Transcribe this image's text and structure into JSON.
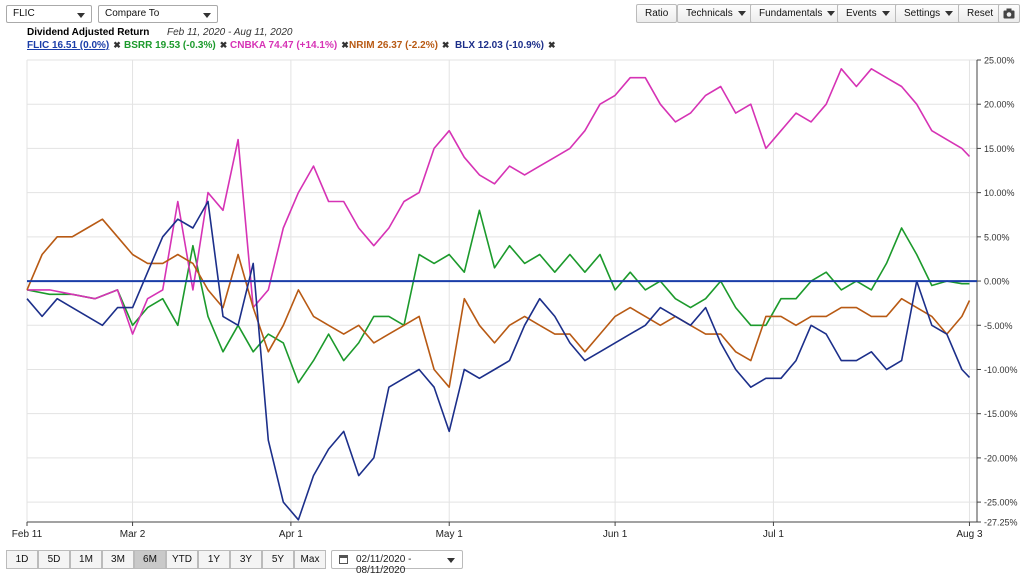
{
  "toolbar": {
    "symbol": "FLIC",
    "compare_placeholder": "Compare To",
    "buttons": {
      "ratio": "Ratio",
      "technicals": "Technicals",
      "fundamentals": "Fundamentals",
      "events": "Events",
      "settings": "Settings",
      "reset": "Reset"
    }
  },
  "chart_title": "Dividend Adjusted Return",
  "date_range_text": "Feb 11, 2020 - Aug 11, 2020",
  "legend": [
    {
      "label": "FLIC 16.51 (0.0%)",
      "color": "#1a3da8"
    },
    {
      "label": "BSRR 19.53 (-0.3%)",
      "color": "#1c9a2c"
    },
    {
      "label": "CNBKA 74.47 (+14.1%)",
      "color": "#d633b5"
    },
    {
      "label": "NRIM 26.37 (-2.2%)",
      "color": "#b85a14"
    },
    {
      "label": "BLX 12.03 (-10.9%)",
      "color": "#1c2f8a"
    }
  ],
  "chart_data": {
    "type": "line",
    "x_labels": [
      "Feb 11",
      "Mar 2",
      "Apr 1",
      "May 1",
      "Jun 1",
      "Jul 1",
      "Aug 3"
    ],
    "y_ticks": [
      "25.00%",
      "20.00%",
      "15.00%",
      "10.00%",
      "5.00%",
      "0.00%",
      "-5.00%",
      "-10.00%",
      "-15.00%",
      "-20.00%",
      "-25.00%",
      "-27.25%"
    ],
    "ylim": [
      -27.25,
      25
    ],
    "x_domain": [
      0,
      126
    ],
    "x_tick_index": [
      0,
      14,
      35,
      56,
      78,
      99,
      125
    ],
    "series": [
      {
        "name": "FLIC",
        "color": "#1a3da8",
        "points": [
          [
            0,
            0
          ],
          [
            126,
            0
          ]
        ]
      },
      {
        "name": "BSRR",
        "color": "#1c9a2c",
        "points": [
          [
            0,
            -1
          ],
          [
            3,
            -1.5
          ],
          [
            6,
            -1.5
          ],
          [
            9,
            -2
          ],
          [
            12,
            -1
          ],
          [
            14,
            -5
          ],
          [
            16,
            -3
          ],
          [
            18,
            -2
          ],
          [
            20,
            -5
          ],
          [
            22,
            4
          ],
          [
            24,
            -4
          ],
          [
            26,
            -8
          ],
          [
            28,
            -5
          ],
          [
            30,
            -8
          ],
          [
            32,
            -6
          ],
          [
            34,
            -7
          ],
          [
            36,
            -11.5
          ],
          [
            38,
            -9
          ],
          [
            40,
            -6
          ],
          [
            42,
            -9
          ],
          [
            44,
            -7
          ],
          [
            46,
            -4
          ],
          [
            48,
            -4
          ],
          [
            50,
            -5
          ],
          [
            52,
            3
          ],
          [
            54,
            2
          ],
          [
            56,
            3
          ],
          [
            58,
            1
          ],
          [
            60,
            8
          ],
          [
            62,
            1.5
          ],
          [
            64,
            4
          ],
          [
            66,
            2
          ],
          [
            68,
            3
          ],
          [
            70,
            1
          ],
          [
            72,
            3
          ],
          [
            74,
            1
          ],
          [
            76,
            3
          ],
          [
            78,
            -1
          ],
          [
            80,
            1
          ],
          [
            82,
            -1
          ],
          [
            84,
            0
          ],
          [
            86,
            -2
          ],
          [
            88,
            -3
          ],
          [
            90,
            -2
          ],
          [
            92,
            0
          ],
          [
            94,
            -3
          ],
          [
            96,
            -5
          ],
          [
            98,
            -5
          ],
          [
            100,
            -2
          ],
          [
            102,
            -2
          ],
          [
            104,
            0
          ],
          [
            106,
            1
          ],
          [
            108,
            -1
          ],
          [
            110,
            0
          ],
          [
            112,
            -1
          ],
          [
            114,
            2
          ],
          [
            116,
            6
          ],
          [
            118,
            3
          ],
          [
            120,
            -0.5
          ],
          [
            122,
            0
          ],
          [
            124,
            -0.3
          ],
          [
            125,
            -0.3
          ]
        ]
      },
      {
        "name": "CNBKA",
        "color": "#d633b5",
        "points": [
          [
            0,
            -1
          ],
          [
            3,
            -1
          ],
          [
            6,
            -1.5
          ],
          [
            9,
            -2
          ],
          [
            12,
            -1
          ],
          [
            14,
            -6
          ],
          [
            16,
            -2
          ],
          [
            18,
            -1
          ],
          [
            20,
            9
          ],
          [
            22,
            -1
          ],
          [
            24,
            10
          ],
          [
            26,
            8
          ],
          [
            28,
            16
          ],
          [
            30,
            -3
          ],
          [
            32,
            -1
          ],
          [
            34,
            6
          ],
          [
            36,
            10
          ],
          [
            38,
            13
          ],
          [
            40,
            9
          ],
          [
            42,
            9
          ],
          [
            44,
            6
          ],
          [
            46,
            4
          ],
          [
            48,
            6
          ],
          [
            50,
            9
          ],
          [
            52,
            10
          ],
          [
            54,
            15
          ],
          [
            56,
            17
          ],
          [
            58,
            14
          ],
          [
            60,
            12
          ],
          [
            62,
            11
          ],
          [
            64,
            13
          ],
          [
            66,
            12
          ],
          [
            68,
            13
          ],
          [
            70,
            14
          ],
          [
            72,
            15
          ],
          [
            74,
            17
          ],
          [
            76,
            20
          ],
          [
            78,
            21
          ],
          [
            80,
            23
          ],
          [
            82,
            23
          ],
          [
            84,
            20
          ],
          [
            86,
            18
          ],
          [
            88,
            19
          ],
          [
            90,
            21
          ],
          [
            92,
            22
          ],
          [
            94,
            19
          ],
          [
            96,
            20
          ],
          [
            98,
            15
          ],
          [
            100,
            17
          ],
          [
            102,
            19
          ],
          [
            104,
            18
          ],
          [
            106,
            20
          ],
          [
            108,
            24
          ],
          [
            110,
            22
          ],
          [
            112,
            24
          ],
          [
            114,
            23
          ],
          [
            116,
            22
          ],
          [
            118,
            20
          ],
          [
            120,
            17
          ],
          [
            122,
            16
          ],
          [
            124,
            15
          ],
          [
            125,
            14.1
          ]
        ]
      },
      {
        "name": "NRIM",
        "color": "#b85a14",
        "points": [
          [
            0,
            -1
          ],
          [
            2,
            3
          ],
          [
            4,
            5
          ],
          [
            6,
            5
          ],
          [
            8,
            6
          ],
          [
            10,
            7
          ],
          [
            12,
            5
          ],
          [
            14,
            3
          ],
          [
            16,
            2
          ],
          [
            18,
            2
          ],
          [
            20,
            3
          ],
          [
            22,
            2
          ],
          [
            24,
            -1
          ],
          [
            26,
            -3
          ],
          [
            28,
            3
          ],
          [
            30,
            -3
          ],
          [
            32,
            -8
          ],
          [
            34,
            -5
          ],
          [
            36,
            -1
          ],
          [
            38,
            -4
          ],
          [
            40,
            -5
          ],
          [
            42,
            -6
          ],
          [
            44,
            -5
          ],
          [
            46,
            -7
          ],
          [
            48,
            -6
          ],
          [
            50,
            -5
          ],
          [
            52,
            -4
          ],
          [
            54,
            -10
          ],
          [
            56,
            -12
          ],
          [
            58,
            -2
          ],
          [
            60,
            -5
          ],
          [
            62,
            -7
          ],
          [
            64,
            -5
          ],
          [
            66,
            -4
          ],
          [
            68,
            -5
          ],
          [
            70,
            -6
          ],
          [
            72,
            -6
          ],
          [
            74,
            -8
          ],
          [
            76,
            -6
          ],
          [
            78,
            -4
          ],
          [
            80,
            -3
          ],
          [
            82,
            -4
          ],
          [
            84,
            -5
          ],
          [
            86,
            -4
          ],
          [
            88,
            -5
          ],
          [
            90,
            -6
          ],
          [
            92,
            -6
          ],
          [
            94,
            -8
          ],
          [
            96,
            -9
          ],
          [
            98,
            -4
          ],
          [
            100,
            -4
          ],
          [
            102,
            -5
          ],
          [
            104,
            -4
          ],
          [
            106,
            -4
          ],
          [
            108,
            -3
          ],
          [
            110,
            -3
          ],
          [
            112,
            -4
          ],
          [
            114,
            -4
          ],
          [
            116,
            -2
          ],
          [
            118,
            -3
          ],
          [
            120,
            -4
          ],
          [
            122,
            -6
          ],
          [
            124,
            -4
          ],
          [
            125,
            -2.2
          ]
        ]
      },
      {
        "name": "BLX",
        "color": "#1c2f8a",
        "points": [
          [
            0,
            -2
          ],
          [
            2,
            -4
          ],
          [
            4,
            -2
          ],
          [
            6,
            -3
          ],
          [
            8,
            -4
          ],
          [
            10,
            -5
          ],
          [
            12,
            -3
          ],
          [
            14,
            -3
          ],
          [
            16,
            1
          ],
          [
            18,
            5
          ],
          [
            20,
            7
          ],
          [
            22,
            6
          ],
          [
            24,
            9
          ],
          [
            26,
            -4
          ],
          [
            28,
            -5
          ],
          [
            30,
            2
          ],
          [
            32,
            -18
          ],
          [
            34,
            -25
          ],
          [
            36,
            -27
          ],
          [
            38,
            -22
          ],
          [
            40,
            -19
          ],
          [
            42,
            -17
          ],
          [
            44,
            -22
          ],
          [
            46,
            -20
          ],
          [
            48,
            -12
          ],
          [
            50,
            -11
          ],
          [
            52,
            -10
          ],
          [
            54,
            -12
          ],
          [
            56,
            -17
          ],
          [
            58,
            -10
          ],
          [
            60,
            -11
          ],
          [
            62,
            -10
          ],
          [
            64,
            -9
          ],
          [
            66,
            -5
          ],
          [
            68,
            -2
          ],
          [
            70,
            -4
          ],
          [
            72,
            -7
          ],
          [
            74,
            -9
          ],
          [
            76,
            -8
          ],
          [
            78,
            -7
          ],
          [
            80,
            -6
          ],
          [
            82,
            -5
          ],
          [
            84,
            -3
          ],
          [
            86,
            -4
          ],
          [
            88,
            -5
          ],
          [
            90,
            -3
          ],
          [
            92,
            -7
          ],
          [
            94,
            -10
          ],
          [
            96,
            -12
          ],
          [
            98,
            -11
          ],
          [
            100,
            -11
          ],
          [
            102,
            -9
          ],
          [
            104,
            -5
          ],
          [
            106,
            -6
          ],
          [
            108,
            -9
          ],
          [
            110,
            -9
          ],
          [
            112,
            -8
          ],
          [
            114,
            -10
          ],
          [
            116,
            -9
          ],
          [
            118,
            0
          ],
          [
            120,
            -5
          ],
          [
            122,
            -6
          ],
          [
            124,
            -10
          ],
          [
            125,
            -10.9
          ]
        ]
      }
    ]
  },
  "range_buttons": [
    "1D",
    "5D",
    "1M",
    "3M",
    "6M",
    "YTD",
    "1Y",
    "3Y",
    "5Y",
    "Max"
  ],
  "active_range": "6M",
  "date_picker": "02/11/2020 - 08/11/2020"
}
